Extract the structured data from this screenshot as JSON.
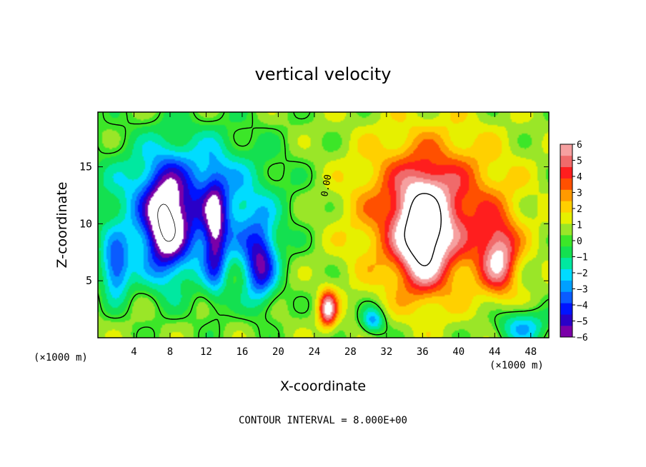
{
  "chart_data": {
    "type": "heatmap",
    "title": "vertical velocity",
    "xlabel": "X-coordinate",
    "ylabel": "Z-coordinate",
    "x_unit_left": "(×1000 m)",
    "x_unit_right": "(×1000 m)",
    "footer": "CONTOUR INTERVAL = 8.000E+00",
    "contour_label": "0.00",
    "xlim": [
      0,
      50
    ],
    "ylim": [
      0,
      19.8
    ],
    "x_ticks": [
      "4",
      "8",
      "12",
      "16",
      "20",
      "24",
      "28",
      "32",
      "36",
      "40",
      "44",
      "48"
    ],
    "y_ticks": [
      "5",
      "10",
      "15"
    ],
    "colorbar": {
      "range": [
        -6,
        6
      ],
      "ticks": [
        "6",
        "5",
        "4",
        "3",
        "2",
        "1",
        "0",
        "−1",
        "−2",
        "−3",
        "−4",
        "−5",
        "−6"
      ],
      "colors": [
        "#7a00a8",
        "#2a00c8",
        "#0014ff",
        "#0a5cff",
        "#00a0ff",
        "#00dcff",
        "#00e8a0",
        "#14e050",
        "#3ce628",
        "#9ae628",
        "#e6f000",
        "#ffd000",
        "#ff9a00",
        "#ff5000",
        "#ff1e1e",
        "#f06a6a",
        "#f6a0a0"
      ],
      "over_color": "#ffffff",
      "under_color": "#ffffff"
    },
    "features": [
      {
        "kind": "downdraft_core",
        "x": 8,
        "z": 10,
        "w": -9
      },
      {
        "kind": "downdraft_core",
        "x": 17.5,
        "z": 6.8,
        "w": -9
      },
      {
        "kind": "downdraft_region",
        "x": 10,
        "z": 11,
        "w": -4.5
      },
      {
        "kind": "updraft_core",
        "x": 36,
        "z": 9,
        "w": 10
      },
      {
        "kind": "updraft_core",
        "x": 45,
        "z": 7,
        "w": 9
      },
      {
        "kind": "updraft_core",
        "x": 25.5,
        "z": 2.5,
        "w": 7
      },
      {
        "kind": "updraft_region",
        "x": 37,
        "z": 11,
        "w": 4.5
      }
    ]
  }
}
